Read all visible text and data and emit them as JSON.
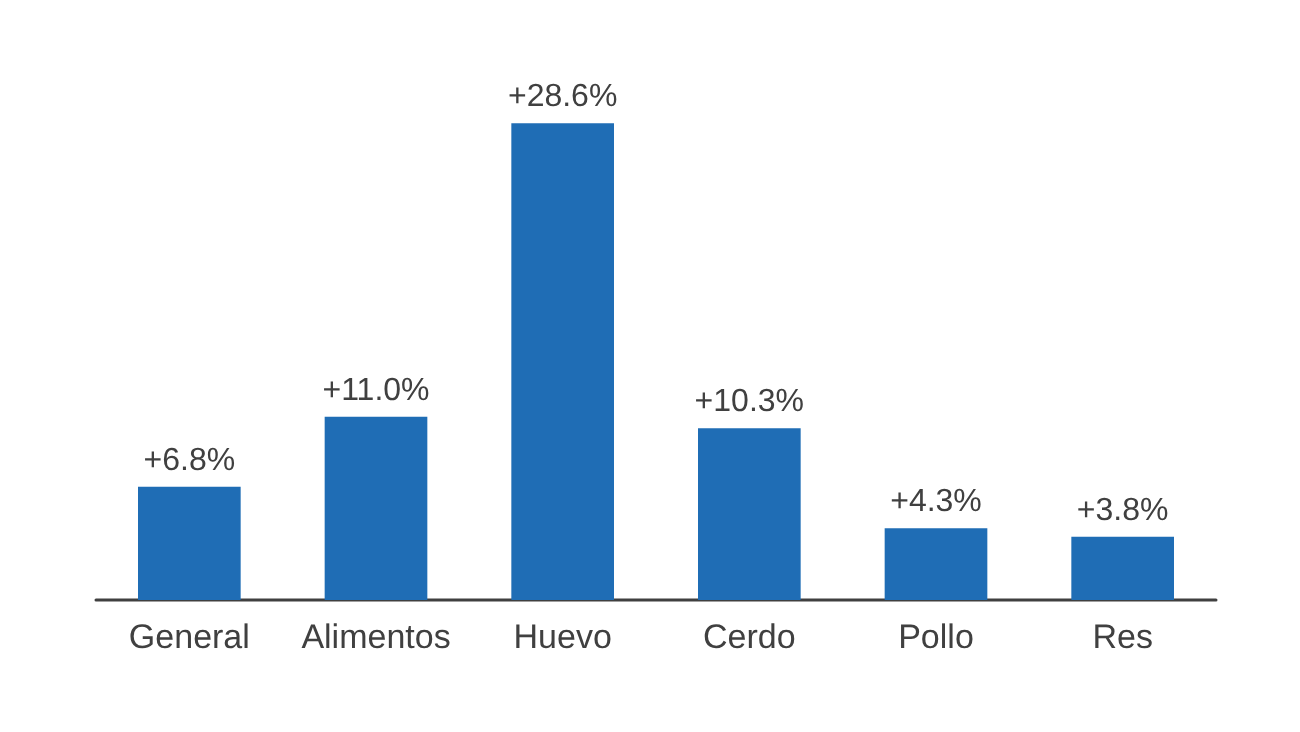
{
  "chart_data": {
    "type": "bar",
    "categories": [
      "General",
      "Alimentos",
      "Huevo",
      "Cerdo",
      "Pollo",
      "Res"
    ],
    "values": [
      6.8,
      11.0,
      28.6,
      10.3,
      4.3,
      3.8
    ],
    "value_labels": [
      "+6.8%",
      "+11.0%",
      "+28.6%",
      "+10.3%",
      "+4.3%",
      "+3.8%"
    ],
    "color": "#1f6db5"
  }
}
